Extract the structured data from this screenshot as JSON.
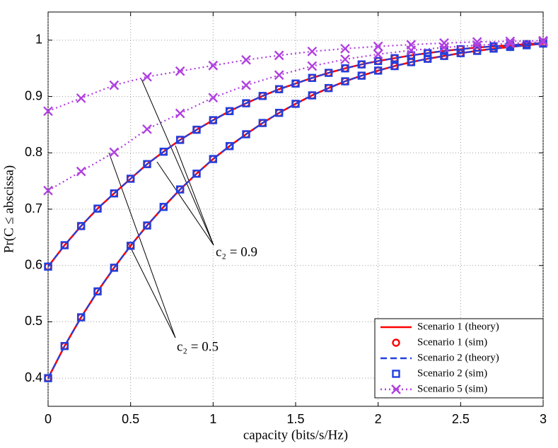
{
  "chart_data": {
    "type": "line",
    "xlabel": "capacity (bits/s/Hz)",
    "ylabel": "Pr(C ≤ abscissa)",
    "xlim": [
      0,
      3
    ],
    "ylim": [
      0.35,
      1.05
    ],
    "xticks": [
      0,
      0.5,
      1,
      1.5,
      2,
      2.5,
      3
    ],
    "yticks": [
      0.4,
      0.5,
      0.6,
      0.7,
      0.8,
      0.9,
      1
    ],
    "grid": true,
    "legend": "lower right",
    "x": [
      0,
      0.1,
      0.2,
      0.3,
      0.4,
      0.5,
      0.6,
      0.7,
      0.8,
      0.9,
      1,
      1.1,
      1.2,
      1.3,
      1.4,
      1.5,
      1.6,
      1.7,
      1.8,
      1.9,
      2,
      2.1,
      2.2,
      2.3,
      2.4,
      2.5,
      2.6,
      2.7,
      2.8,
      2.9,
      3
    ],
    "annotations": [
      "c₂ = 0.9",
      "c₂ = 0.5"
    ],
    "series": [
      {
        "name": "Scenario 1 (theory)",
        "color": "#ff0000",
        "line": "solid",
        "marker": "none",
        "curves": [
          [
            0.598,
            0.636,
            0.67,
            0.701,
            0.728,
            0.754,
            0.78,
            0.802,
            0.823,
            0.841,
            0.858,
            0.874,
            0.888,
            0.901,
            0.913,
            0.923,
            0.933,
            0.942,
            0.95,
            0.957,
            0.963,
            0.968,
            0.973,
            0.977,
            0.981,
            0.984,
            0.987,
            0.989,
            0.991,
            0.993,
            0.995
          ],
          [
            0.4,
            0.457,
            0.508,
            0.554,
            0.596,
            0.635,
            0.671,
            0.704,
            0.735,
            0.763,
            0.789,
            0.812,
            0.833,
            0.853,
            0.871,
            0.887,
            0.902,
            0.915,
            0.927,
            0.937,
            0.946,
            0.954,
            0.961,
            0.967,
            0.972,
            0.977,
            0.981,
            0.985,
            0.988,
            0.991,
            0.994
          ]
        ]
      },
      {
        "name": "Scenario 1 (sim)",
        "color": "#ff0000",
        "line": "none",
        "marker": "circle",
        "curves": [
          [
            0.598,
            0.636,
            0.67,
            0.701,
            0.728,
            0.754,
            0.78,
            0.802,
            0.823,
            0.841,
            0.858,
            0.874,
            0.888,
            0.901,
            0.913,
            0.923,
            0.933,
            0.942,
            0.95,
            0.957,
            0.963,
            0.968,
            0.973,
            0.977,
            0.981,
            0.984,
            0.987,
            0.989,
            0.991,
            0.993,
            0.995
          ],
          [
            0.4,
            0.457,
            0.508,
            0.554,
            0.596,
            0.635,
            0.671,
            0.704,
            0.735,
            0.763,
            0.789,
            0.812,
            0.833,
            0.853,
            0.871,
            0.887,
            0.902,
            0.915,
            0.927,
            0.937,
            0.946,
            0.954,
            0.961,
            0.967,
            0.972,
            0.977,
            0.981,
            0.985,
            0.988,
            0.991,
            0.994
          ]
        ]
      },
      {
        "name": "Scenario 2 (theory)",
        "color": "#2040e0",
        "line": "dashed",
        "marker": "none",
        "curves": [
          [
            0.598,
            0.636,
            0.67,
            0.701,
            0.728,
            0.754,
            0.78,
            0.802,
            0.823,
            0.841,
            0.858,
            0.874,
            0.888,
            0.901,
            0.913,
            0.923,
            0.933,
            0.942,
            0.95,
            0.957,
            0.963,
            0.968,
            0.973,
            0.977,
            0.981,
            0.984,
            0.987,
            0.989,
            0.991,
            0.993,
            0.995
          ],
          [
            0.4,
            0.457,
            0.508,
            0.554,
            0.596,
            0.635,
            0.671,
            0.704,
            0.735,
            0.763,
            0.789,
            0.812,
            0.833,
            0.853,
            0.871,
            0.887,
            0.902,
            0.915,
            0.927,
            0.937,
            0.946,
            0.954,
            0.961,
            0.967,
            0.972,
            0.977,
            0.981,
            0.985,
            0.988,
            0.991,
            0.994
          ]
        ]
      },
      {
        "name": "Scenario 2 (sim)",
        "color": "#2040e0",
        "line": "none",
        "marker": "square",
        "curves": [
          [
            0.598,
            0.636,
            0.67,
            0.701,
            0.728,
            0.754,
            0.78,
            0.802,
            0.823,
            0.841,
            0.858,
            0.874,
            0.888,
            0.901,
            0.913,
            0.923,
            0.933,
            0.942,
            0.95,
            0.957,
            0.963,
            0.968,
            0.973,
            0.977,
            0.981,
            0.984,
            0.987,
            0.989,
            0.991,
            0.993,
            0.995
          ],
          [
            0.4,
            0.457,
            0.508,
            0.554,
            0.596,
            0.635,
            0.671,
            0.704,
            0.735,
            0.763,
            0.789,
            0.812,
            0.833,
            0.853,
            0.871,
            0.887,
            0.902,
            0.915,
            0.927,
            0.937,
            0.946,
            0.954,
            0.961,
            0.967,
            0.972,
            0.977,
            0.981,
            0.985,
            0.988,
            0.991,
            0.994
          ]
        ]
      },
      {
        "name": "Scenario 5 (sim)",
        "color": "#b040e0",
        "line": "dotted",
        "marker": "x",
        "x": [
          0,
          0.2,
          0.4,
          0.6,
          0.8,
          1,
          1.2,
          1.4,
          1.6,
          1.8,
          2,
          2.2,
          2.4,
          2.6,
          2.8,
          3
        ],
        "curves": [
          [
            0.874,
            0.897,
            0.92,
            0.935,
            0.945,
            0.955,
            0.965,
            0.973,
            0.98,
            0.985,
            0.989,
            0.992,
            0.995,
            0.997,
            0.998,
            0.999
          ],
          [
            0.733,
            0.767,
            0.801,
            0.842,
            0.87,
            0.898,
            0.92,
            0.938,
            0.954,
            0.966,
            0.975,
            0.982,
            0.987,
            0.991,
            0.994,
            0.997
          ]
        ]
      }
    ]
  }
}
